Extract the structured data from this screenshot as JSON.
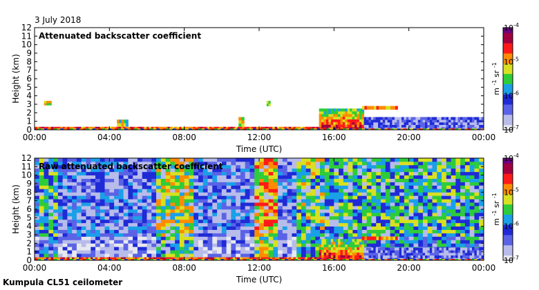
{
  "date": "3 July 2018",
  "footer": "Kumpula CL51 ceilometer",
  "colors": {
    "scale": [
      "#e8e8f0",
      "#b8bcea",
      "#5a63e6",
      "#1f2bd6",
      "#1aa0e8",
      "#2ecc3a",
      "#d9e021",
      "#ff8c00",
      "#ff1a1a",
      "#a00040",
      "#6a0080"
    ],
    "ground": [
      "#ff0000",
      "#00cc33",
      "#ffe600",
      "#0033ff",
      "#ff7f00"
    ]
  },
  "chart_data": [
    {
      "type": "heatmap",
      "title": "Attenuated backscatter coefficient",
      "xlabel": "Time (UTC)",
      "ylabel": "Height (km)",
      "xlim": [
        0,
        24
      ],
      "ylim": [
        0,
        12
      ],
      "x_ticks": [
        "00:00",
        "04:00",
        "08:00",
        "12:00",
        "16:00",
        "20:00",
        "00:00"
      ],
      "y_ticks": [
        "0",
        "1",
        "2",
        "3",
        "4",
        "5",
        "6",
        "7",
        "8",
        "9",
        "10",
        "11",
        "12"
      ],
      "colorbar": {
        "ticks": [
          "10",
          "10",
          "10",
          "10"
        ],
        "exponents": [
          "-4",
          "-5",
          "-6",
          "-7"
        ],
        "label": "m",
        "label_exp": "-1",
        "label2": "sr",
        "label2_exp": "-1",
        "log_range": [
          -7,
          -4
        ]
      },
      "layers": [
        {
          "name": "surface layer",
          "t0": 0,
          "t1": 15.2,
          "h0": 0,
          "h1": 0.35,
          "level": 0.75
        },
        {
          "name": "evening aerosol",
          "t0": 15.2,
          "t1": 17.6,
          "h0": 0,
          "h1": 2.5,
          "level": 0.85
        },
        {
          "name": "elevated layer",
          "t0": 17.5,
          "t1": 19.4,
          "h0": 2.4,
          "h1": 2.8,
          "level": 0.7
        },
        {
          "name": "night boundary layer",
          "t0": 17.6,
          "t1": 24,
          "h0": 0,
          "h1": 1.5,
          "level": 0.2
        },
        {
          "name": "cloud 00:30",
          "t0": 0.5,
          "t1": 0.9,
          "h0": 2.9,
          "h1": 3.4,
          "level": 0.6
        },
        {
          "name": "cloud 04:40",
          "t0": 4.4,
          "t1": 5.0,
          "h0": 0.4,
          "h1": 1.2,
          "level": 0.55
        },
        {
          "name": "cloud 11:00",
          "t0": 10.9,
          "t1": 11.2,
          "h0": 0.4,
          "h1": 1.5,
          "level": 0.6
        },
        {
          "name": "cloud 12:30",
          "t0": 12.4,
          "t1": 12.6,
          "h0": 2.8,
          "h1": 3.4,
          "level": 0.55
        }
      ]
    },
    {
      "type": "heatmap",
      "title": "Raw attenuated backscatter coefficient",
      "xlabel": "Time (UTC)",
      "ylabel": "Height (km)",
      "xlim": [
        0,
        24
      ],
      "ylim": [
        0,
        12
      ],
      "x_ticks": [
        "00:00",
        "04:00",
        "08:00",
        "12:00",
        "16:00",
        "20:00",
        "00:00"
      ],
      "y_ticks": [
        "0",
        "1",
        "2",
        "3",
        "4",
        "5",
        "6",
        "7",
        "8",
        "9",
        "10",
        "11",
        "12"
      ],
      "colorbar": {
        "ticks": [
          "10",
          "10",
          "10",
          "10"
        ],
        "exponents": [
          "-4",
          "-5",
          "-6",
          "-7"
        ],
        "label": "m",
        "label_exp": "-1",
        "label2": "sr",
        "label2_exp": "-1",
        "log_range": [
          -7,
          -4
        ]
      },
      "noisy_periods": [
        {
          "t0": 0.3,
          "t1": 1.2,
          "level": 0.45
        },
        {
          "t0": 6.4,
          "t1": 8.4,
          "level": 0.55
        },
        {
          "t0": 11.8,
          "t1": 13.0,
          "level": 0.65
        },
        {
          "t0": 14.0,
          "t1": 15.5,
          "level": 0.5
        },
        {
          "t0": 15.5,
          "t1": 24,
          "level": 0.45
        }
      ],
      "layers": [
        {
          "name": "surface layer",
          "t0": 0,
          "t1": 15.2,
          "h0": 0,
          "h1": 0.35,
          "level": 0.75
        },
        {
          "name": "evening aerosol",
          "t0": 15.2,
          "t1": 17.6,
          "h0": 0,
          "h1": 2.5,
          "level": 0.85
        },
        {
          "name": "elevated layer",
          "t0": 17.5,
          "t1": 19.4,
          "h0": 2.4,
          "h1": 2.8,
          "level": 0.7
        },
        {
          "name": "night boundary layer",
          "t0": 17.6,
          "t1": 24,
          "h0": 0,
          "h1": 1.5,
          "level": 0.2
        }
      ]
    }
  ]
}
